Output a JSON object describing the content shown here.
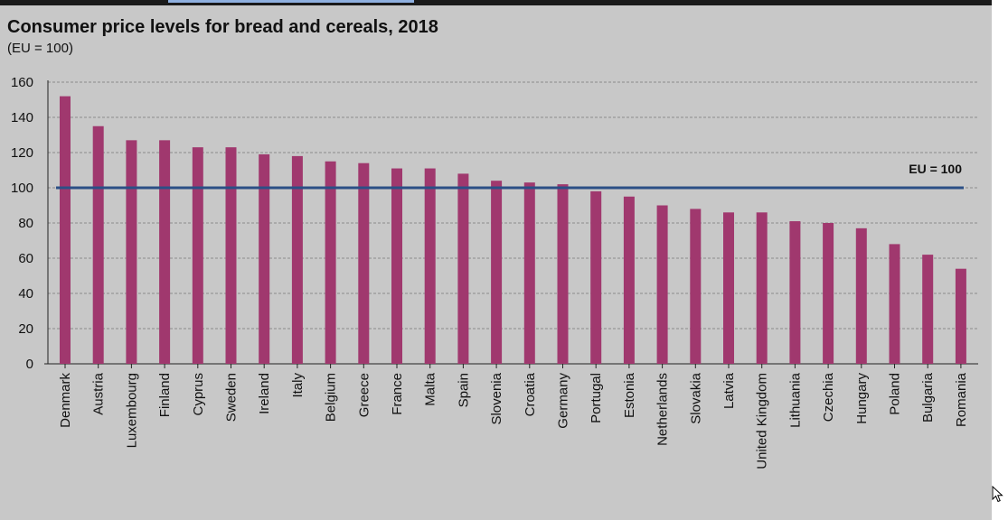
{
  "chart_data": {
    "type": "bar",
    "title": "Consumer price levels for bread and cereals, 2018",
    "subtitle": "(EU = 100)",
    "xlabel": "",
    "ylabel": "",
    "ylim": [
      0,
      160
    ],
    "yticks": [
      0,
      20,
      40,
      60,
      80,
      100,
      120,
      140,
      160
    ],
    "grid": true,
    "bar_color": "#a0386e",
    "reference_line": {
      "value": 100,
      "label": "EU = 100",
      "color": "#2b4f86"
    },
    "categories": [
      "Denmark",
      "Austria",
      "Luxembourg",
      "Finland",
      "Cyprus",
      "Sweden",
      "Ireland",
      "Italy",
      "Belgium",
      "Greece",
      "France",
      "Malta",
      "Spain",
      "Slovenia",
      "Croatia",
      "Germany",
      "Portugal",
      "Estonia",
      "Netherlands",
      "Slovakia",
      "Latvia",
      "United Kingdom",
      "Lithuania",
      "Czechia",
      "Hungary",
      "Poland",
      "Bulgaria",
      "Romania"
    ],
    "values": [
      152,
      135,
      127,
      127,
      123,
      123,
      119,
      118,
      115,
      114,
      111,
      111,
      108,
      104,
      103,
      102,
      98,
      95,
      90,
      88,
      86,
      86,
      81,
      80,
      77,
      68,
      62,
      54
    ]
  }
}
